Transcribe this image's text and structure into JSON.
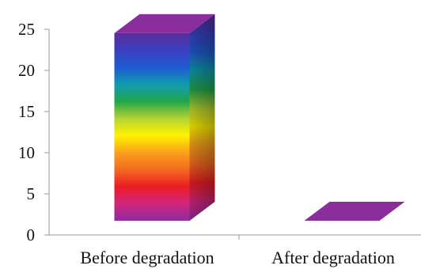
{
  "chart_data": {
    "type": "bar",
    "categories": [
      "Before degradation",
      "After degradation"
    ],
    "values": [
      22.8,
      0.0
    ],
    "ylim": [
      0,
      25
    ],
    "yticks": [
      "0",
      "5",
      "10",
      "15",
      "20",
      "25"
    ],
    "grid": false,
    "style": "3d-rainbow-gradient",
    "colors": {
      "top_face": "#8a2e9e",
      "rainbow": [
        "#8e2aa2",
        "#d0267c",
        "#ec1c24",
        "#f46a20",
        "#f9a11b",
        "#fff200",
        "#b5d334",
        "#21a64a",
        "#0f9bb0",
        "#1f5bd1",
        "#3a3fc0",
        "#5c2d9c"
      ]
    }
  }
}
